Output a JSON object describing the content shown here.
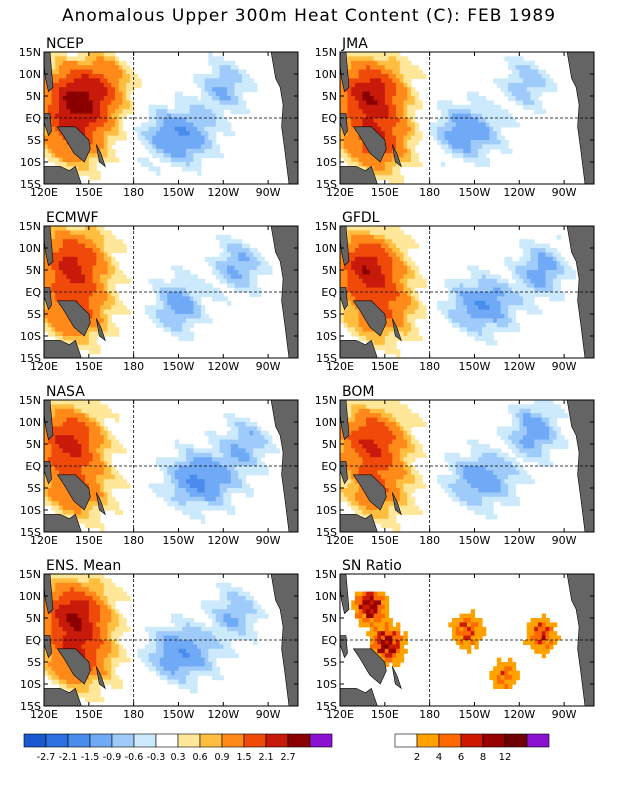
{
  "figure_title": "Anomalous Upper 300m Heat Content (C): FEB 1989",
  "lat_labels": [
    "15N",
    "10N",
    "5N",
    "EQ",
    "5S",
    "10S",
    "15S"
  ],
  "lon_labels": [
    "120E",
    "150E",
    "180",
    "150W",
    "120W",
    "90W"
  ],
  "chart_data": [
    {
      "type": "heatmap",
      "title": "NCEP",
      "xlim": [
        120,
        290
      ],
      "ylim": [
        -15,
        15
      ],
      "features": [
        {
          "lon": 142,
          "lat": 5,
          "value": 2.6
        },
        {
          "lon": 141,
          "lat": -4,
          "value": 1.6
        },
        {
          "lon": 163,
          "lat": 8,
          "value": 0.8
        },
        {
          "lon": 210,
          "lat": -4,
          "value": -1.5
        },
        {
          "lon": 240,
          "lat": 7,
          "value": -0.9
        }
      ]
    },
    {
      "type": "heatmap",
      "title": "JMA",
      "xlim": [
        120,
        290
      ],
      "ylim": [
        -15,
        15
      ],
      "features": [
        {
          "lon": 140,
          "lat": 6,
          "value": 2.5
        },
        {
          "lon": 145,
          "lat": -5,
          "value": 1.9
        },
        {
          "lon": 205,
          "lat": -3,
          "value": -1.3
        },
        {
          "lon": 245,
          "lat": 8,
          "value": -0.8
        }
      ]
    },
    {
      "type": "heatmap",
      "title": "ECMWF",
      "xlim": [
        120,
        290
      ],
      "ylim": [
        -15,
        15
      ],
      "features": [
        {
          "lon": 139,
          "lat": 7,
          "value": 2.2
        },
        {
          "lon": 141,
          "lat": -4,
          "value": 1.7
        },
        {
          "lon": 210,
          "lat": -3,
          "value": -1.2
        },
        {
          "lon": 250,
          "lat": 6,
          "value": -1.0
        }
      ]
    },
    {
      "type": "heatmap",
      "title": "GFDL",
      "xlim": [
        120,
        290
      ],
      "ylim": [
        -15,
        15
      ],
      "features": [
        {
          "lon": 138,
          "lat": 6,
          "value": 2.4
        },
        {
          "lon": 148,
          "lat": -4,
          "value": 1.5
        },
        {
          "lon": 215,
          "lat": -3,
          "value": -1.4
        },
        {
          "lon": 255,
          "lat": 5,
          "value": -1.1
        }
      ]
    },
    {
      "type": "heatmap",
      "title": "NASA",
      "xlim": [
        120,
        290
      ],
      "ylim": [
        -15,
        15
      ],
      "features": [
        {
          "lon": 136,
          "lat": 6,
          "value": 2.2
        },
        {
          "lon": 142,
          "lat": -5,
          "value": 1.4
        },
        {
          "lon": 225,
          "lat": -3,
          "value": -1.6
        },
        {
          "lon": 255,
          "lat": 5,
          "value": -0.9
        }
      ]
    },
    {
      "type": "heatmap",
      "title": "BOM",
      "xlim": [
        120,
        290
      ],
      "ylim": [
        -15,
        15
      ],
      "features": [
        {
          "lon": 141,
          "lat": 6,
          "value": 2.1
        },
        {
          "lon": 146,
          "lat": -5,
          "value": 1.3
        },
        {
          "lon": 215,
          "lat": -3,
          "value": -1.3
        },
        {
          "lon": 250,
          "lat": 8,
          "value": -1.2
        }
      ]
    },
    {
      "type": "heatmap",
      "title": "ENS. Mean",
      "xlim": [
        120,
        290
      ],
      "ylim": [
        -15,
        15
      ],
      "features": [
        {
          "lon": 140,
          "lat": 6,
          "value": 2.5
        },
        {
          "lon": 144,
          "lat": -4,
          "value": 1.7
        },
        {
          "lon": 212,
          "lat": -3,
          "value": -1.4
        },
        {
          "lon": 248,
          "lat": 6,
          "value": -0.9
        }
      ]
    },
    {
      "type": "heatmap",
      "title": "SN Ratio",
      "xlim": [
        120,
        290
      ],
      "ylim": [
        -15,
        15
      ],
      "features": [
        {
          "lon": 140,
          "lat": 8,
          "value": 12
        },
        {
          "lon": 152,
          "lat": -1,
          "value": 12
        },
        {
          "lon": 205,
          "lat": 2,
          "value": 8
        },
        {
          "lon": 255,
          "lat": 1,
          "value": 8
        },
        {
          "lon": 230,
          "lat": -8,
          "value": 6
        }
      ]
    }
  ],
  "colorbar_anomaly": {
    "labels": [
      "-2.7",
      "-2.1",
      "-1.5",
      "-0.9",
      "-0.6",
      "-0.3",
      "0.3",
      "0.6",
      "0.9",
      "1.5",
      "2.1",
      "2.7"
    ],
    "colors": [
      "#1b58cf",
      "#2f70e3",
      "#4a8ced",
      "#70aaf6",
      "#9fcbfb",
      "#cdeafd",
      "#ffffff",
      "#ffe79a",
      "#ffbe3f",
      "#ff8a1a",
      "#f04a0a",
      "#c81a0a",
      "#8b0000",
      "#8a12d0"
    ]
  },
  "colorbar_sn": {
    "labels": [
      "2",
      "4",
      "6",
      "8",
      "12"
    ],
    "colors": [
      "#ffffff",
      "#ffa200",
      "#ff6a00",
      "#cc1a00",
      "#990000",
      "#6f0000",
      "#8a12d0"
    ]
  }
}
